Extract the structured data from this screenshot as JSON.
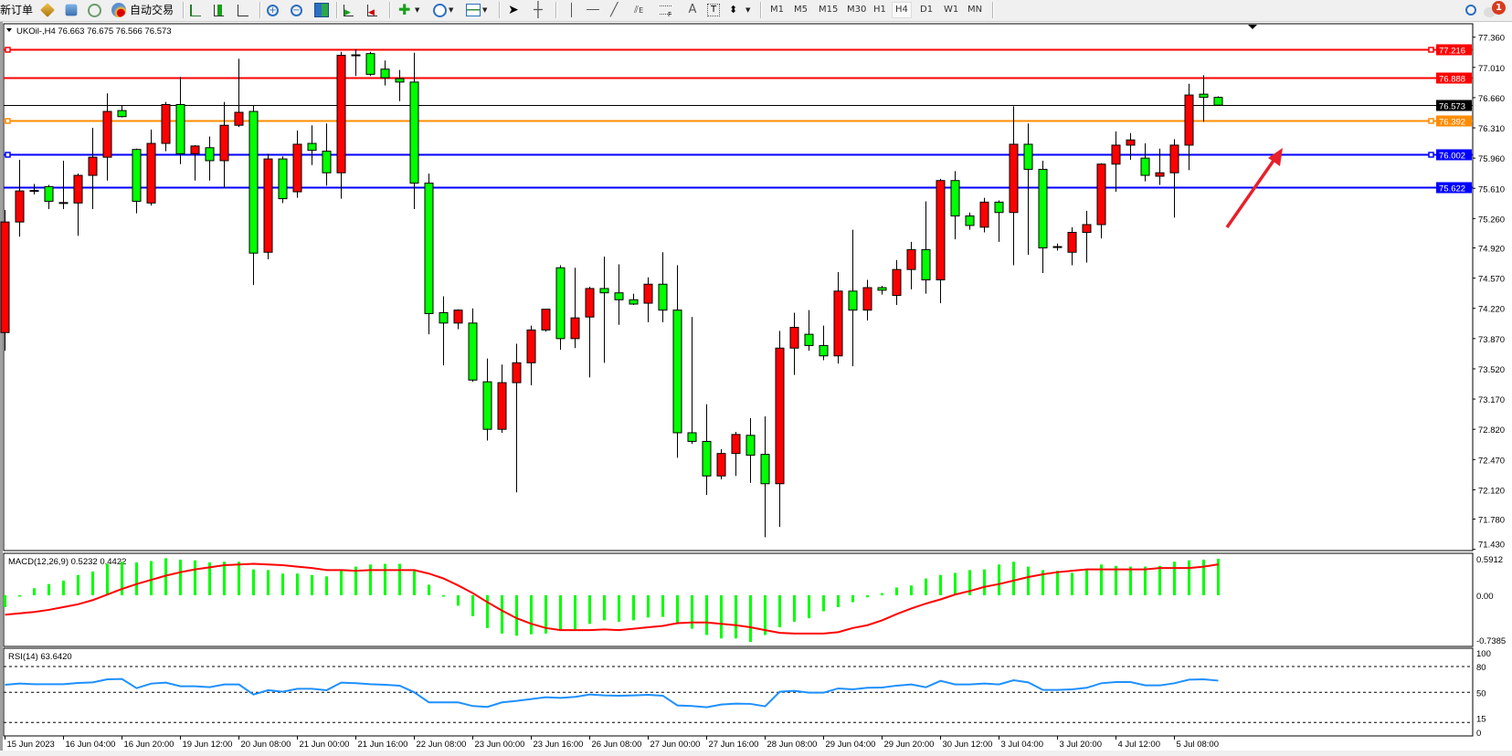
{
  "toolbar": {
    "new_order": "新订单",
    "auto_trading": "自动交易",
    "timeframes": [
      "M1",
      "M5",
      "M15",
      "M30",
      "H1",
      "H4",
      "D1",
      "W1",
      "MN"
    ],
    "active_timeframe": "H4",
    "notification_count": "1",
    "icons": [
      "market-watch-icon",
      "navigator-icon",
      "signals-icon",
      "auto-trading-icon",
      "bar-chart-icon",
      "candlestick-icon",
      "line-chart-icon",
      "zoom-in-icon",
      "zoom-out-icon",
      "tile-windows-icon",
      "chart-shift-icon",
      "autoscroll-icon",
      "new-chart-icon",
      "periods-clock-icon",
      "templates-icon",
      "cursor-icon",
      "crosshair-icon",
      "vertical-line-icon",
      "horizontal-line-icon",
      "trendline-icon",
      "equidistant-channel-icon",
      "fibonacci-icon",
      "text-icon",
      "text-label-icon",
      "arrows-icon",
      "search-icon",
      "notifications-icon"
    ]
  },
  "chart": {
    "header": "UKOil-,H4  76.663 76.675 76.566 76.573",
    "colors": {
      "bull": "#ff0000",
      "bear": "#00ff00",
      "macd_hist": "#00ff00",
      "macd_signal": "#ff0000",
      "rsi": "#1e90ff",
      "arrow": "#e8202a"
    },
    "price_axis": [
      "77.360",
      "77.010",
      "76.660",
      "76.310",
      "75.960",
      "75.610",
      "75.260",
      "74.920",
      "74.570",
      "74.220",
      "73.870",
      "73.520",
      "73.170",
      "72.820",
      "72.470",
      "72.120",
      "71.780",
      "71.430"
    ],
    "levels": [
      {
        "price": "77.216",
        "color": "#ff0000",
        "marker": true
      },
      {
        "price": "76.888",
        "color": "#ff0000",
        "marker": false
      },
      {
        "price": "76.573",
        "color": "#000000",
        "marker": false
      },
      {
        "price": "76.392",
        "color": "#ff8c00",
        "marker": true
      },
      {
        "price": "76.002",
        "color": "#0000ff",
        "marker": true
      },
      {
        "price": "75.622",
        "color": "#0000ff",
        "marker": false
      }
    ],
    "annotation": "red-arrow-up",
    "time_axis": [
      "15 Jun 2023",
      "16 Jun 04:00",
      "16 Jun 20:00",
      "19 Jun 12:00",
      "20 Jun 08:00",
      "21 Jun 00:00",
      "21 Jun 16:00",
      "22 Jun 08:00",
      "23 Jun 00:00",
      "23 Jun 16:00",
      "26 Jun 08:00",
      "27 Jun 00:00",
      "27 Jun 16:00",
      "28 Jun 08:00",
      "29 Jun 04:00",
      "29 Jun 20:00",
      "30 Jun 12:00",
      "3 Jul 04:00",
      "3 Jul 20:00",
      "4 Jul 12:00",
      "5 Jul 08:00"
    ]
  },
  "chart_data": [
    {
      "type": "candlestick",
      "title": "UKOil-,H4",
      "ylim": [
        71.43,
        77.36
      ],
      "ohlc": [
        [
          73.94,
          75.36,
          73.73,
          75.22
        ],
        [
          75.22,
          75.94,
          75.05,
          75.58
        ],
        [
          75.58,
          75.66,
          75.54,
          75.58
        ],
        [
          75.63,
          75.65,
          75.37,
          75.46
        ],
        [
          75.44,
          75.93,
          75.37,
          75.44
        ],
        [
          75.44,
          75.78,
          75.06,
          75.76
        ],
        [
          75.76,
          76.31,
          75.37,
          75.97
        ],
        [
          75.97,
          76.71,
          75.7,
          76.5
        ],
        [
          76.51,
          76.57,
          76.43,
          76.44
        ],
        [
          76.06,
          76.07,
          75.32,
          75.46
        ],
        [
          75.44,
          76.29,
          75.41,
          76.13
        ],
        [
          76.13,
          76.61,
          76.04,
          76.58
        ],
        [
          76.58,
          76.9,
          75.89,
          76.01
        ],
        [
          76.01,
          76.11,
          75.7,
          76.1
        ],
        [
          76.08,
          76.21,
          75.7,
          75.93
        ],
        [
          75.93,
          76.61,
          75.61,
          76.34
        ],
        [
          76.34,
          77.11,
          76.32,
          76.49
        ],
        [
          76.5,
          76.57,
          74.49,
          74.86
        ],
        [
          74.87,
          76.01,
          74.79,
          75.95
        ],
        [
          75.95,
          75.98,
          75.44,
          75.49
        ],
        [
          75.57,
          76.28,
          75.5,
          76.12
        ],
        [
          76.13,
          76.34,
          75.88,
          76.05
        ],
        [
          76.04,
          76.36,
          75.64,
          75.79
        ],
        [
          75.79,
          77.19,
          75.49,
          77.15
        ],
        [
          77.15,
          77.22,
          76.91,
          77.15
        ],
        [
          77.17,
          77.19,
          76.91,
          76.93
        ],
        [
          76.99,
          77.09,
          76.8,
          76.89
        ],
        [
          76.88,
          76.98,
          76.62,
          76.84
        ],
        [
          76.84,
          77.18,
          75.37,
          75.67
        ],
        [
          75.67,
          75.78,
          73.92,
          74.16
        ],
        [
          74.17,
          74.36,
          73.56,
          74.05
        ],
        [
          74.05,
          74.21,
          73.98,
          74.2
        ],
        [
          74.05,
          74.22,
          73.37,
          73.39
        ],
        [
          73.37,
          73.64,
          72.69,
          72.82
        ],
        [
          72.82,
          73.57,
          72.78,
          73.36
        ],
        [
          73.36,
          73.81,
          72.09,
          73.59
        ],
        [
          73.59,
          74.02,
          73.33,
          73.97
        ],
        [
          73.97,
          74.21,
          73.95,
          74.21
        ],
        [
          74.69,
          74.72,
          73.74,
          73.87
        ],
        [
          73.87,
          74.69,
          73.76,
          74.11
        ],
        [
          74.12,
          74.47,
          73.42,
          74.45
        ],
        [
          74.45,
          74.82,
          73.59,
          74.4
        ],
        [
          74.4,
          74.73,
          74.03,
          74.32
        ],
        [
          74.32,
          74.39,
          74.26,
          74.27
        ],
        [
          74.28,
          74.58,
          74.06,
          74.5
        ],
        [
          74.5,
          74.87,
          74.06,
          74.2
        ],
        [
          74.2,
          74.72,
          72.49,
          72.78
        ],
        [
          72.78,
          74.12,
          72.65,
          72.68
        ],
        [
          72.68,
          73.11,
          72.06,
          72.28
        ],
        [
          72.28,
          72.59,
          72.24,
          72.54
        ],
        [
          72.54,
          72.79,
          72.28,
          72.76
        ],
        [
          72.75,
          72.95,
          72.2,
          72.52
        ],
        [
          72.53,
          72.97,
          71.57,
          72.19
        ],
        [
          72.19,
          73.96,
          71.69,
          73.76
        ],
        [
          73.76,
          74.17,
          73.45,
          74.0
        ],
        [
          73.92,
          74.2,
          73.73,
          73.79
        ],
        [
          73.79,
          74.02,
          73.62,
          73.67
        ],
        [
          73.67,
          74.64,
          73.58,
          74.42
        ],
        [
          74.42,
          75.13,
          73.55,
          74.2
        ],
        [
          74.2,
          74.55,
          74.08,
          74.46
        ],
        [
          74.46,
          74.48,
          74.38,
          74.43
        ],
        [
          74.37,
          74.78,
          74.26,
          74.67
        ],
        [
          74.67,
          74.99,
          74.44,
          74.9
        ],
        [
          74.9,
          75.46,
          74.39,
          74.55
        ],
        [
          74.55,
          75.72,
          74.28,
          75.7
        ],
        [
          75.7,
          75.81,
          75.02,
          75.29
        ],
        [
          75.29,
          75.33,
          75.13,
          75.18
        ],
        [
          75.16,
          75.5,
          75.1,
          75.45
        ],
        [
          75.45,
          75.47,
          74.99,
          75.33
        ],
        [
          75.33,
          76.56,
          74.72,
          76.12
        ],
        [
          76.12,
          76.36,
          74.84,
          75.83
        ],
        [
          75.83,
          75.93,
          74.63,
          74.92
        ],
        [
          74.93,
          74.97,
          74.89,
          74.93
        ],
        [
          74.87,
          75.16,
          74.72,
          75.1
        ],
        [
          75.1,
          75.35,
          74.75,
          75.19
        ],
        [
          75.19,
          75.9,
          75.03,
          75.89
        ],
        [
          75.89,
          76.27,
          75.57,
          76.11
        ],
        [
          76.11,
          76.25,
          75.94,
          76.17
        ],
        [
          75.96,
          76.13,
          75.69,
          75.76
        ],
        [
          75.75,
          76.07,
          75.65,
          75.79
        ],
        [
          75.79,
          76.18,
          75.27,
          76.11
        ],
        [
          76.11,
          76.82,
          75.82,
          76.69
        ],
        [
          76.7,
          76.92,
          76.38,
          76.663
        ],
        [
          76.663,
          76.675,
          76.566,
          76.573
        ]
      ]
    },
    {
      "type": "bar+line",
      "title": "MACD(12,26,9) 0.5232 0.4422",
      "ylim": [
        -0.7385,
        0.5912
      ],
      "tick_labels": [
        "0.5912",
        "0.00",
        "-0.7385"
      ],
      "histogram": [
        -0.17,
        -0.01,
        0.1,
        0.16,
        0.21,
        0.29,
        0.34,
        0.45,
        0.48,
        0.47,
        0.49,
        0.53,
        0.51,
        0.5,
        0.47,
        0.48,
        0.48,
        0.37,
        0.36,
        0.31,
        0.31,
        0.29,
        0.27,
        0.36,
        0.41,
        0.44,
        0.45,
        0.45,
        0.36,
        0.15,
        -0.01,
        -0.15,
        -0.3,
        -0.47,
        -0.55,
        -0.58,
        -0.56,
        -0.55,
        -0.51,
        -0.49,
        -0.41,
        -0.36,
        -0.38,
        -0.36,
        -0.32,
        -0.31,
        -0.4,
        -0.48,
        -0.57,
        -0.62,
        -0.62,
        -0.67,
        -0.57,
        -0.46,
        -0.38,
        -0.33,
        -0.23,
        -0.17,
        -0.1,
        -0.03,
        0.03,
        0.11,
        0.14,
        0.24,
        0.29,
        0.32,
        0.36,
        0.37,
        0.44,
        0.48,
        0.41,
        0.36,
        0.35,
        0.32,
        0.36,
        0.44,
        0.42,
        0.41,
        0.41,
        0.42,
        0.48,
        0.5,
        0.51,
        0.5232
      ],
      "signal": [
        -0.28,
        -0.26,
        -0.24,
        -0.21,
        -0.17,
        -0.13,
        -0.07,
        0.01,
        0.09,
        0.16,
        0.22,
        0.28,
        0.33,
        0.37,
        0.4,
        0.43,
        0.44,
        0.45,
        0.44,
        0.43,
        0.41,
        0.39,
        0.36,
        0.36,
        0.35,
        0.36,
        0.36,
        0.36,
        0.36,
        0.31,
        0.24,
        0.14,
        0.03,
        -0.1,
        -0.22,
        -0.33,
        -0.41,
        -0.47,
        -0.5,
        -0.5,
        -0.5,
        -0.49,
        -0.5,
        -0.48,
        -0.46,
        -0.44,
        -0.4,
        -0.39,
        -0.39,
        -0.41,
        -0.43,
        -0.46,
        -0.5,
        -0.54,
        -0.55,
        -0.55,
        -0.55,
        -0.53,
        -0.47,
        -0.43,
        -0.36,
        -0.27,
        -0.19,
        -0.12,
        -0.06,
        0.01,
        0.06,
        0.12,
        0.16,
        0.21,
        0.26,
        0.3,
        0.33,
        0.35,
        0.37,
        0.37,
        0.37,
        0.37,
        0.37,
        0.39,
        0.39,
        0.39,
        0.41,
        0.4422
      ]
    },
    {
      "type": "line",
      "title": "RSI(14) 63.6420",
      "ylim": [
        0,
        100
      ],
      "levels": [
        80,
        50,
        15
      ],
      "tick_labels": [
        "100",
        "80",
        "50",
        "15",
        "0"
      ],
      "values": [
        58.8,
        60.2,
        59.5,
        59.5,
        59.5,
        60.9,
        61.6,
        65.2,
        65.5,
        54.9,
        60.2,
        61.3,
        57.1,
        57.1,
        56.0,
        59.2,
        59.2,
        47.5,
        52.5,
        50.7,
        54.2,
        54.2,
        52.5,
        61.3,
        60.6,
        59.5,
        58.8,
        57.8,
        50.0,
        38.4,
        38.4,
        38.4,
        34.1,
        33.1,
        38.4,
        40.1,
        42.2,
        44.4,
        43.6,
        44.7,
        47.5,
        46.5,
        46.1,
        46.5,
        47.2,
        46.1,
        34.8,
        34.1,
        32.7,
        35.9,
        36.9,
        36.6,
        33.8,
        50.7,
        51.8,
        49.6,
        49.6,
        54.6,
        53.5,
        55.3,
        55.6,
        57.8,
        59.2,
        55.9,
        63.4,
        59.2,
        59.2,
        60.2,
        59.2,
        64.1,
        61.6,
        52.8,
        52.8,
        53.5,
        55.3,
        60.6,
        62.0,
        62.0,
        58.1,
        58.1,
        60.6,
        64.8,
        65.2,
        63.642
      ]
    }
  ]
}
